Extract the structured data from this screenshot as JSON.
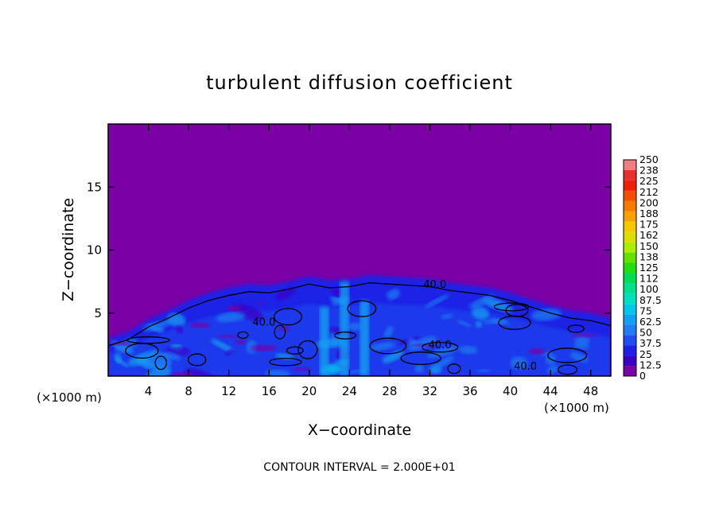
{
  "chart_data": {
    "type": "heatmap",
    "title": "turbulent diffusion coefficient",
    "xlabel": "X−coordinate",
    "ylabel": "Z−coordinate",
    "x_unit": "(×1000 m)",
    "x_unit_right": "(×1000 m)",
    "xlim": [
      0,
      50
    ],
    "ylim": [
      0,
      20
    ],
    "x_ticks": [
      4,
      8,
      12,
      16,
      20,
      24,
      28,
      32,
      36,
      40,
      44,
      48
    ],
    "y_ticks": [
      5,
      10,
      15
    ],
    "contour_interval_text": "CONTOUR INTERVAL = 2.000E+01",
    "contour_labels": [
      {
        "text": "40.0",
        "x": 32.5,
        "z": 7.0
      },
      {
        "text": "40.0",
        "x": 15.5,
        "z": 4.0
      },
      {
        "text": "40.0",
        "x": 33.0,
        "z": 2.2
      },
      {
        "text": "40.0",
        "x": 41.5,
        "z": 0.5
      }
    ],
    "colorbar": {
      "levels": [
        "0",
        "12.5",
        "25",
        "37.5",
        "50",
        "62.5",
        "75",
        "87.5",
        "100",
        "112",
        "125",
        "138",
        "150",
        "162",
        "175",
        "188",
        "200",
        "212",
        "225",
        "238",
        "250"
      ],
      "colors": [
        "#7b00a6",
        "#3b00c8",
        "#1e20e6",
        "#1f4ff0",
        "#1f7cf2",
        "#12a0f0",
        "#00c8e8",
        "#00e0c0",
        "#00e090",
        "#00dd55",
        "#22dd11",
        "#66e000",
        "#aaee00",
        "#dddd00",
        "#f3c800",
        "#f7a000",
        "#f77a00",
        "#f25000",
        "#ee2000",
        "#e83030",
        "#f08080"
      ]
    },
    "cloud_top_profile": {
      "x": [
        0,
        2,
        4,
        6,
        8,
        10,
        12,
        14,
        16,
        18,
        20,
        22,
        24,
        26,
        28,
        30,
        32,
        34,
        36,
        38,
        40,
        42,
        44,
        46,
        48,
        50
      ],
      "z": [
        3.0,
        3.5,
        4.5,
        5.2,
        6.0,
        6.6,
        7.0,
        7.3,
        7.2,
        7.5,
        7.9,
        7.6,
        7.7,
        8.0,
        7.9,
        7.8,
        7.7,
        7.4,
        7.2,
        7.0,
        6.6,
        6.1,
        5.6,
        5.2,
        5.0,
        4.6
      ]
    }
  }
}
